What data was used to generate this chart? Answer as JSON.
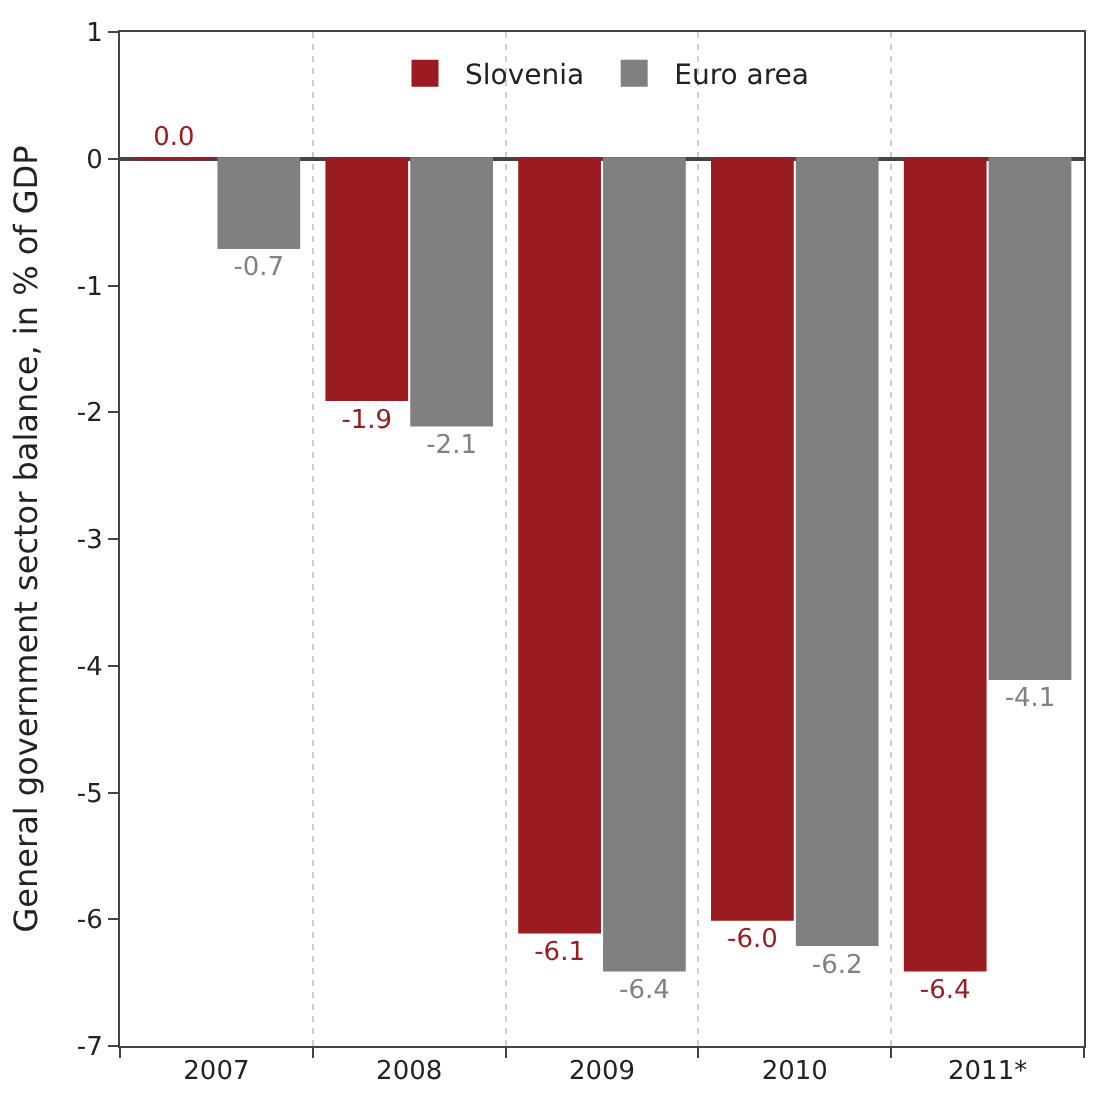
{
  "chart_data": {
    "type": "bar",
    "ylabel": "General government sector balance, in % of GDP",
    "categories": [
      "2007",
      "2008",
      "2009",
      "2010",
      "2011*"
    ],
    "series": [
      {
        "name": "Slovenia",
        "color": "#9b1c20",
        "values": [
          0.0,
          -1.9,
          -6.1,
          -6.0,
          -6.4
        ],
        "value_labels": [
          "0.0",
          "-1.9",
          "-6.1",
          "-6.0",
          "-6.4"
        ]
      },
      {
        "name": "Euro area",
        "color": "#808080",
        "values": [
          -0.7,
          -2.1,
          -6.4,
          -6.2,
          -4.1
        ],
        "value_labels": [
          "-0.7",
          "-2.1",
          "-6.4",
          "-6.2",
          "-4.1"
        ]
      }
    ],
    "ylim": [
      -7,
      1
    ],
    "yticks": [
      -7,
      -6,
      -5,
      -4,
      -3,
      -2,
      -1,
      0,
      1
    ],
    "grid": "x",
    "legend": "top"
  }
}
